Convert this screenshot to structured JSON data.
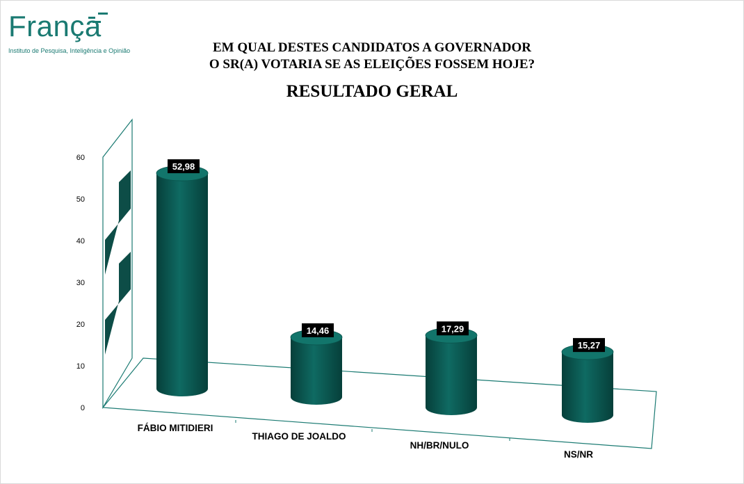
{
  "logo": {
    "word": "França",
    "tagline": "Instituto de Pesquisa, Inteligência e Opinião"
  },
  "header": {
    "question_line1": "EM QUAL DESTES CANDIDATOS A GOVERNADOR",
    "question_line2": "O SR(A) VOTARIA SE AS ELEIÇÕES FOSSEM HOJE?",
    "title": "RESULTADO GERAL"
  },
  "colors": {
    "bar": "#0f6a62",
    "bar_dark": "#063f3a",
    "axis": "#1a7a72",
    "label_bg": "#000000",
    "label_text": "#ffffff"
  },
  "chart_data": {
    "type": "bar",
    "style": "3d-cylinder",
    "title": "RESULTADO GERAL",
    "categories": [
      "FÁBIO MITIDIERI",
      "THIAGO DE JOALDO",
      "NH/BR/NULO",
      "NS/NR"
    ],
    "values": [
      52.98,
      14.46,
      17.29,
      15.27
    ],
    "value_labels": [
      "52,98",
      "14,46",
      "17,29",
      "15,27"
    ],
    "y_ticks": [
      "0",
      "10",
      "20",
      "30",
      "40",
      "50",
      "60"
    ],
    "ylim": [
      0,
      60
    ],
    "grid": false,
    "legend": false
  }
}
